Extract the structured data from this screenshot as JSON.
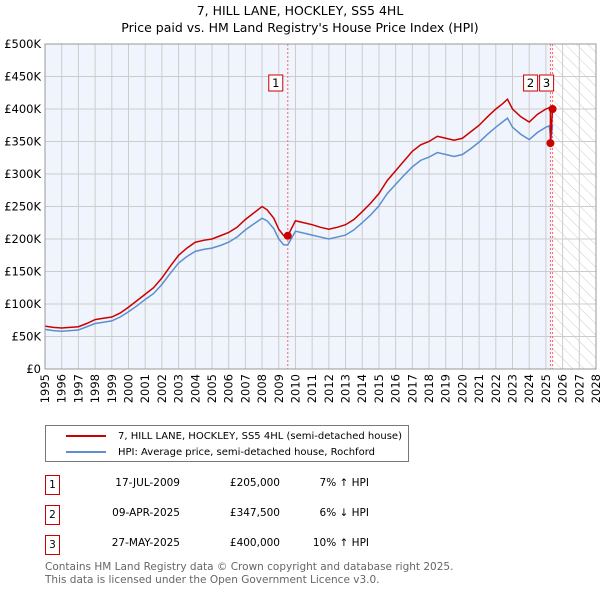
{
  "chart_data": {
    "type": "line",
    "title": "7, HILL LANE, HOCKLEY, SS5 4HL",
    "subtitle": "Price paid vs. HM Land Registry's House Price Index (HPI)",
    "xlim": [
      1995,
      2028
    ],
    "ylim": [
      0,
      500000
    ],
    "x_ticks": [
      "1995",
      "1996",
      "1997",
      "1998",
      "1999",
      "2000",
      "2001",
      "2002",
      "2003",
      "2004",
      "2005",
      "2006",
      "2007",
      "2008",
      "2009",
      "2010",
      "2011",
      "2012",
      "2013",
      "2014",
      "2015",
      "2016",
      "2017",
      "2018",
      "2019",
      "2020",
      "2021",
      "2022",
      "2023",
      "2024",
      "2025",
      "2026",
      "2027",
      "2028"
    ],
    "y_ticks": [
      "£0",
      "£50K",
      "£100K",
      "£150K",
      "£200K",
      "£250K",
      "£300K",
      "£350K",
      "£400K",
      "£450K",
      "£500K"
    ],
    "grid": true,
    "colors": {
      "property": "#cc0000",
      "hpi": "#5b8fd0",
      "marker_line": "#ff6666"
    },
    "x": [
      1995,
      1995.5,
      1996,
      1996.5,
      1997,
      1997.5,
      1998,
      1998.5,
      1999,
      1999.5,
      2000,
      2000.5,
      2001,
      2001.5,
      2002,
      2002.5,
      2003,
      2003.5,
      2004,
      2004.5,
      2005,
      2005.5,
      2006,
      2006.5,
      2007,
      2007.5,
      2008,
      2008.3,
      2008.7,
      2009,
      2009.3,
      2009.54,
      2010,
      2010.5,
      2011,
      2011.5,
      2012,
      2012.5,
      2013,
      2013.5,
      2014,
      2014.5,
      2015,
      2015.5,
      2016,
      2016.5,
      2017,
      2017.5,
      2018,
      2018.5,
      2019,
      2019.5,
      2020,
      2020.5,
      2021,
      2021.5,
      2022,
      2022.4,
      2022.7,
      2023,
      2023.5,
      2024,
      2024.5,
      2025,
      2025.2
    ],
    "series": [
      {
        "name": "7, HILL LANE, HOCKLEY, SS5 4HL (semi-detached house)",
        "values": [
          66000,
          64000,
          63000,
          64000,
          65000,
          70000,
          76000,
          78000,
          80000,
          86000,
          95000,
          105000,
          115000,
          125000,
          140000,
          158000,
          175000,
          186000,
          195000,
          198000,
          200000,
          205000,
          210000,
          218000,
          230000,
          240000,
          250000,
          245000,
          232000,
          215000,
          205000,
          205000,
          228000,
          225000,
          222000,
          218000,
          215000,
          218000,
          222000,
          230000,
          242000,
          255000,
          270000,
          290000,
          305000,
          320000,
          335000,
          345000,
          350000,
          358000,
          355000,
          352000,
          355000,
          365000,
          375000,
          388000,
          400000,
          408000,
          415000,
          400000,
          388000,
          380000,
          392000,
          400000,
          402000
        ]
      },
      {
        "name": "HPI: Average price, semi-detached house, Rochford",
        "values": [
          61000,
          59000,
          58000,
          59000,
          60000,
          65000,
          70000,
          72000,
          74000,
          80000,
          88000,
          97000,
          107000,
          116000,
          130000,
          147000,
          163000,
          173000,
          181000,
          184000,
          186000,
          190000,
          195000,
          203000,
          214000,
          223000,
          232000,
          228000,
          216000,
          200000,
          191000,
          191000,
          212000,
          209000,
          206000,
          203000,
          200000,
          203000,
          206000,
          214000,
          225000,
          237000,
          251000,
          270000,
          284000,
          298000,
          311000,
          321000,
          326000,
          333000,
          330000,
          327000,
          330000,
          339000,
          349000,
          361000,
          372000,
          380000,
          386000,
          372000,
          361000,
          353000,
          364000,
          372000,
          374000
        ]
      }
    ],
    "sales": [
      {
        "label": "1",
        "x": 2009.54,
        "value": 205000,
        "date": "17-JUL-2009",
        "price": "£205,000",
        "hpi": "7% ↑ HPI"
      },
      {
        "label": "2",
        "x": 2025.27,
        "value": 347500,
        "date": "09-APR-2025",
        "price": "£347,500",
        "hpi": "6% ↓ HPI"
      },
      {
        "label": "3",
        "x": 2025.4,
        "value": 400000,
        "date": "27-MAY-2025",
        "price": "£400,000",
        "hpi": "10% ↑ HPI"
      }
    ],
    "forecast_start": 2025.4
  },
  "legend": {
    "property": "7, HILL LANE, HOCKLEY, SS5 4HL (semi-detached house)",
    "hpi": "HPI: Average price, semi-detached house, Rochford"
  },
  "footer": {
    "line1": "Contains HM Land Registry data © Crown copyright and database right 2025.",
    "line2": "This data is licensed under the Open Government Licence v3.0."
  }
}
